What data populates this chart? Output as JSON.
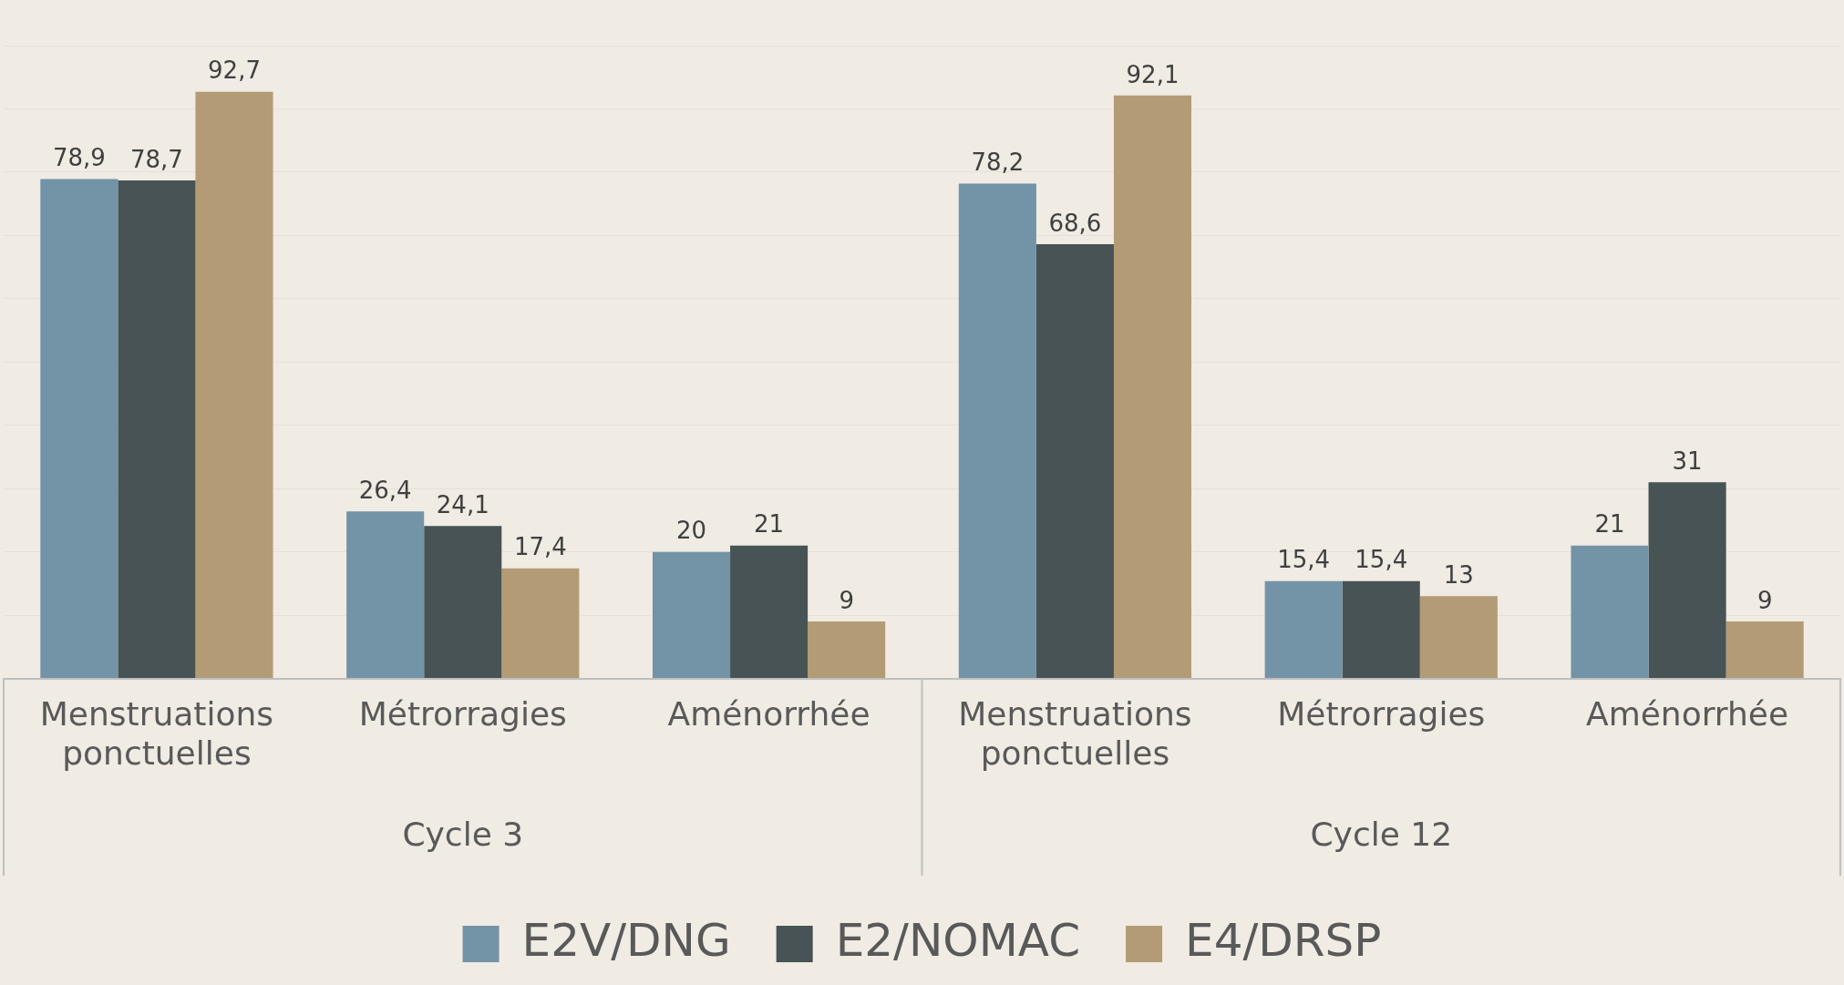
{
  "chart_data": {
    "type": "bar",
    "categories": [
      "Menstruations ponctuelles",
      "Métrorragies",
      "Aménorrhée",
      "Menstruations ponctuelles",
      "Métrorragies",
      "Aménorrhée"
    ],
    "series": [
      {
        "name": "E2V/DNG",
        "color": "#7393a7",
        "values": [
          78.9,
          26.4,
          20,
          78.2,
          15.4,
          21
        ],
        "value_labels": [
          "78,9",
          "26,4",
          "20",
          "78,2",
          "15,4",
          "21"
        ]
      },
      {
        "name": "E2/NOMAC",
        "color": "#475354",
        "values": [
          78.7,
          24.1,
          21,
          68.6,
          15.4,
          31
        ],
        "value_labels": [
          "78,7",
          "24,1",
          "21",
          "68,6",
          "15,4",
          "31"
        ]
      },
      {
        "name": "E4/DRSP",
        "color": "#b39b76",
        "values": [
          92.7,
          17.4,
          9,
          92.1,
          13,
          9
        ],
        "value_labels": [
          "92,7",
          "17,4",
          "9",
          "92,1",
          "13",
          "9"
        ]
      }
    ],
    "annotations": [
      "Cycle 3",
      "Cycle 12"
    ],
    "ylim": [
      0,
      100
    ],
    "yticks": [
      {
        "value": 0,
        "label": null
      },
      {
        "value": 10,
        "label": null
      },
      {
        "value": 20,
        "label": null
      },
      {
        "value": 30,
        "label": null
      },
      {
        "value": 40,
        "label": null
      },
      {
        "value": 50,
        "label": null
      },
      {
        "value": 60,
        "label": null
      },
      {
        "value": 70,
        "label": null
      },
      {
        "value": 80,
        "label": null
      },
      {
        "value": 90,
        "label": null
      },
      {
        "value": 100,
        "label": null
      }
    ],
    "grid": "y",
    "legend": "bottom",
    "tick_labels": "x"
  }
}
